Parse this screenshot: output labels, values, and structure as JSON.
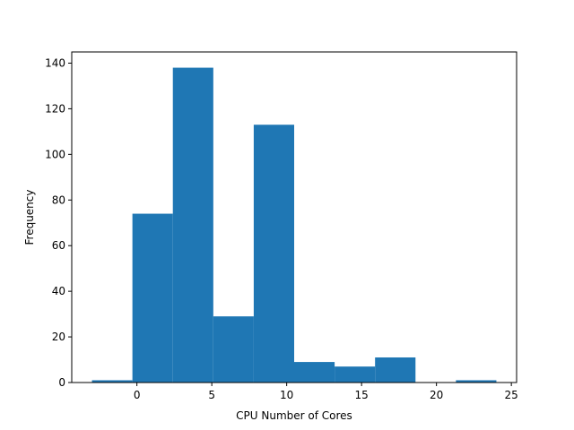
{
  "chart_data": {
    "type": "bar",
    "subtype": "histogram",
    "bin_edges": [
      -3,
      -0.3,
      2.4,
      5.1,
      7.8,
      10.5,
      13.2,
      15.9,
      18.6,
      21.3,
      24
    ],
    "counts": [
      1,
      74,
      138,
      29,
      113,
      9,
      7,
      11,
      0,
      1
    ],
    "title": "",
    "xlabel": "CPU Number of Cores",
    "ylabel": "Frequency",
    "xlim": [
      -4.35,
      25.35
    ],
    "ylim": [
      0,
      144.9
    ],
    "xticks": [
      0,
      5,
      10,
      15,
      20,
      25
    ],
    "yticks": [
      0,
      20,
      40,
      60,
      80,
      100,
      120,
      140
    ],
    "bar_color": "#1f77b4",
    "grid": false,
    "legend": "none"
  }
}
